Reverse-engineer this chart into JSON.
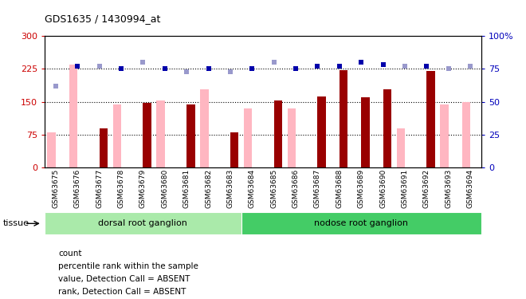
{
  "title": "GDS1635 / 1430994_at",
  "categories": [
    "GSM63675",
    "GSM63676",
    "GSM63677",
    "GSM63678",
    "GSM63679",
    "GSM63680",
    "GSM63681",
    "GSM63682",
    "GSM63683",
    "GSM63684",
    "GSM63685",
    "GSM63686",
    "GSM63687",
    "GSM63688",
    "GSM63689",
    "GSM63690",
    "GSM63691",
    "GSM63692",
    "GSM63693",
    "GSM63694"
  ],
  "count_values": [
    0,
    0,
    90,
    0,
    148,
    0,
    143,
    0,
    80,
    0,
    152,
    0,
    162,
    222,
    160,
    178,
    0,
    220,
    0,
    0
  ],
  "value_pink": [
    80,
    235,
    0,
    143,
    0,
    152,
    0,
    178,
    0,
    135,
    0,
    135,
    0,
    0,
    0,
    0,
    90,
    0,
    143,
    150
  ],
  "absent_flags": [
    true,
    false,
    true,
    false,
    true,
    false,
    true,
    false,
    true,
    false,
    true,
    false,
    false,
    false,
    false,
    false,
    true,
    false,
    true,
    true
  ],
  "percentile_rank": [
    62,
    77,
    77,
    75,
    80,
    75,
    73,
    75,
    73,
    75,
    80,
    75,
    77,
    77,
    80,
    78,
    77,
    77,
    75,
    77
  ],
  "tissue_groups": [
    {
      "label": "dorsal root ganglion",
      "start": 0,
      "end": 9,
      "color": "#aaeaaa"
    },
    {
      "label": "nodose root ganglion",
      "start": 9,
      "end": 20,
      "color": "#44cc66"
    }
  ],
  "ylim_left": [
    0,
    300
  ],
  "ylim_right": [
    0,
    100
  ],
  "yticks_left": [
    0,
    75,
    150,
    225,
    300
  ],
  "yticks_right": [
    0,
    25,
    50,
    75,
    100
  ],
  "color_count": "#990000",
  "color_pink": "#FFB6C1",
  "color_rank_blue": "#0000AA",
  "color_rank_absent": "#9999CC",
  "bar_width": 0.38,
  "legend_items": [
    {
      "color": "#990000",
      "label": "count"
    },
    {
      "color": "#0000AA",
      "label": "percentile rank within the sample"
    },
    {
      "color": "#FFB6C1",
      "label": "value, Detection Call = ABSENT"
    },
    {
      "color": "#9999CC",
      "label": "rank, Detection Call = ABSENT"
    }
  ]
}
